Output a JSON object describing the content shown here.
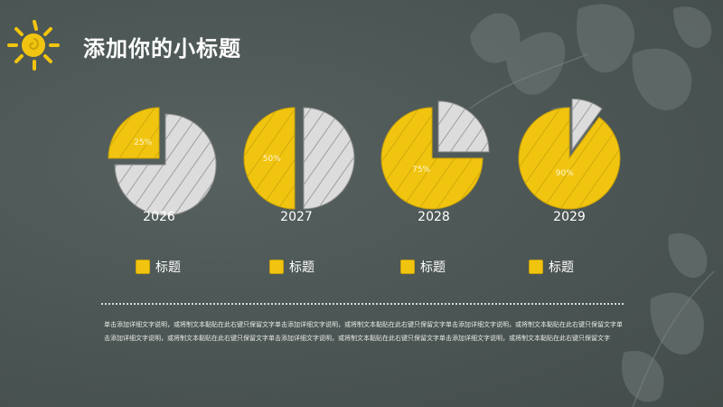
{
  "title": "添加你的小标题",
  "colors": {
    "accent": "#f1c40f",
    "slice_gray": "#dadada",
    "background": "#4a5452"
  },
  "chart_data": {
    "type": "pie",
    "charts": [
      {
        "year": "2026",
        "value": 25,
        "label": "25%"
      },
      {
        "year": "2027",
        "value": 50,
        "label": "50%"
      },
      {
        "year": "2028",
        "value": 75,
        "label": "75%"
      },
      {
        "year": "2029",
        "value": 90,
        "label": "90%"
      }
    ],
    "legend": [
      "标题",
      "标题",
      "标题",
      "标题"
    ]
  },
  "body_text": "单击添加详细文字说明，或将制文本黏贴在此右键只保留文字单击添加详细文字说明，或将制文本黏贴在此右键只保留文字单击添加详细文字说明，或将制文本黏贴在此右键只保留文字单击添加详细文字说明，或将制文本黏贴在此右键只保留文字单击添加详细文字说明，或将制文本黏贴在此右键只保留文字单击添加详细文字说明，或将制文本黏贴在此右键只保留文字"
}
